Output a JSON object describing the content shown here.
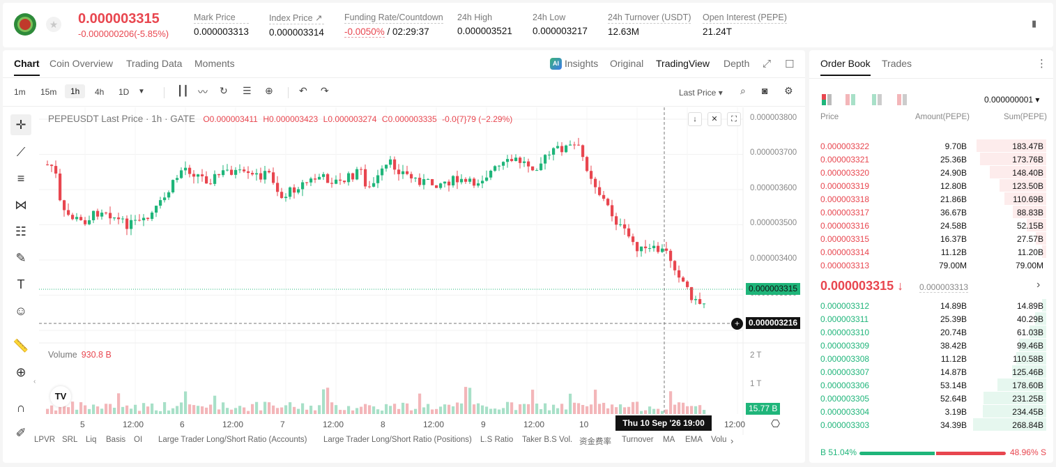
{
  "header": {
    "last_price": "0.000003315",
    "change": "-0.000000206(-5.85%)",
    "stats": [
      {
        "label": "Mark Price",
        "value": "0.000003313"
      },
      {
        "label": "Index Price ↗",
        "value": "0.000003314"
      },
      {
        "label": "Funding Rate/Countdown",
        "value_red": "-0.0050%",
        "value": " / 02:29:37"
      },
      {
        "label": "24h High",
        "value": "0.000003521"
      },
      {
        "label": "24h Low",
        "value": "0.000003217"
      },
      {
        "label": "24h Turnover (USDT)",
        "value": "12.63M"
      },
      {
        "label": "Open Interest (PEPE)",
        "value": "21.24T"
      }
    ]
  },
  "chart_tabs": [
    "Chart",
    "Coin Overview",
    "Trading Data",
    "Moments"
  ],
  "chart_views": {
    "insights": "Insights",
    "original": "Original",
    "tradingview": "TradingView",
    "depth": "Depth"
  },
  "timeframes": [
    "1m",
    "15m",
    "1h",
    "4h",
    "1D"
  ],
  "price_type": "Last Price ▾",
  "legend": {
    "symbol": "PEPEUSDT Last Price · 1h · GATE",
    "o": "O0.000003411",
    "h": "H0.000003423",
    "l": "L0.000003274",
    "c": "C0.000003335",
    "chg": "-0.0{7}79 (−2.29%)"
  },
  "volume_legend": {
    "label": "Volume",
    "value": "930.8 B"
  },
  "price_axis": [
    "0.000003800",
    "0.000003700",
    "0.000003600",
    "0.000003500",
    "0.000003400",
    "0.000003300"
  ],
  "volume_axis": [
    "2 T",
    "1 T"
  ],
  "current_price_tag": "0.000003315",
  "crosshair_price_tag": "0.000003216",
  "volume_tag": "15.77 B",
  "time_tag": "Thu 10 Sep '26   19:00",
  "time_axis": [
    "5",
    "12:00",
    "6",
    "12:00",
    "7",
    "12:00",
    "8",
    "12:00",
    "9",
    "12:00",
    "10",
    "12:00"
  ],
  "indicators": [
    "LPVR",
    "SRL",
    "Liq",
    "Basis",
    "OI",
    "Large Trader Long/Short Ratio (Accounts)",
    "Large Trader Long/Short Ratio (Positions)",
    "L.S Ratio",
    "Taker B.S Vol.",
    "资金费率",
    "Turnover",
    "MA",
    "EMA",
    "Volu"
  ],
  "orderbook": {
    "tabs": [
      "Order Book",
      "Trades"
    ],
    "precision": "0.000000001",
    "headers": {
      "price": "Price",
      "amount": "Amount(PEPE)",
      "sum": "Sum(PEPE)"
    },
    "asks": [
      {
        "price": "0.000003322",
        "amount": "9.70B",
        "sum": "183.47B",
        "depth": 0.95
      },
      {
        "price": "0.000003321",
        "amount": "25.36B",
        "sum": "173.76B",
        "depth": 0.9
      },
      {
        "price": "0.000003320",
        "amount": "24.90B",
        "sum": "148.40B",
        "depth": 0.77
      },
      {
        "price": "0.000003319",
        "amount": "12.80B",
        "sum": "123.50B",
        "depth": 0.64
      },
      {
        "price": "0.000003318",
        "amount": "21.86B",
        "sum": "110.69B",
        "depth": 0.57
      },
      {
        "price": "0.000003317",
        "amount": "36.67B",
        "sum": "88.83B",
        "depth": 0.46
      },
      {
        "price": "0.000003316",
        "amount": "24.58B",
        "sum": "52.15B",
        "depth": 0.27
      },
      {
        "price": "0.000003315",
        "amount": "16.37B",
        "sum": "27.57B",
        "depth": 0.14
      },
      {
        "price": "0.000003314",
        "amount": "11.12B",
        "sum": "11.20B",
        "depth": 0.06
      },
      {
        "price": "0.000003313",
        "amount": "79.00M",
        "sum": "79.00M",
        "depth": 0.0
      }
    ],
    "mid_price": "0.000003315 ↓",
    "mark_price": "0.000003313",
    "bids": [
      {
        "price": "0.000003312",
        "amount": "14.89B",
        "sum": "14.89B",
        "depth": 0.06
      },
      {
        "price": "0.000003311",
        "amount": "25.39B",
        "sum": "40.29B",
        "depth": 0.15
      },
      {
        "price": "0.000003310",
        "amount": "20.74B",
        "sum": "61.03B",
        "depth": 0.23
      },
      {
        "price": "0.000003309",
        "amount": "38.42B",
        "sum": "99.46B",
        "depth": 0.37
      },
      {
        "price": "0.000003308",
        "amount": "11.12B",
        "sum": "110.58B",
        "depth": 0.41
      },
      {
        "price": "0.000003307",
        "amount": "14.87B",
        "sum": "125.46B",
        "depth": 0.47
      },
      {
        "price": "0.000003306",
        "amount": "53.14B",
        "sum": "178.60B",
        "depth": 0.67
      },
      {
        "price": "0.000003305",
        "amount": "52.64B",
        "sum": "231.25B",
        "depth": 0.86
      },
      {
        "price": "0.000003304",
        "amount": "3.19B",
        "sum": "234.45B",
        "depth": 0.87
      },
      {
        "price": "0.000003303",
        "amount": "34.39B",
        "sum": "268.84B",
        "depth": 1.0
      }
    ],
    "buy_ratio": "B 51.04%",
    "sell_ratio": "48.96% S"
  },
  "colors": {
    "up": "#1fb57a",
    "down": "#e8464f"
  }
}
